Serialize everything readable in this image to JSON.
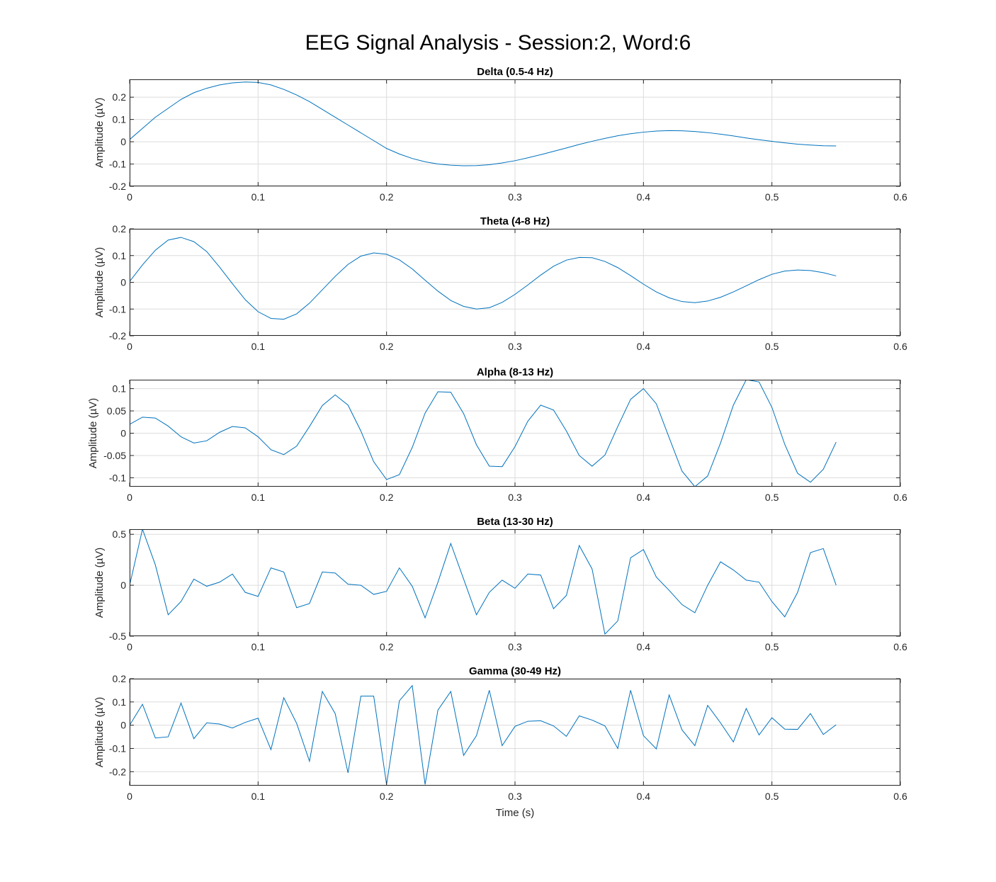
{
  "title": "EEG Signal Analysis - Session:2, Word:6",
  "colors": {
    "line": "#0072bd",
    "grid": "#dcdcdc",
    "axis": "#262626"
  },
  "chart_data": [
    {
      "type": "line",
      "title": "Delta (0.5-4 Hz)",
      "ylabel": "Amplitude (µV)",
      "xlabel": "",
      "xlim": [
        0,
        0.6
      ],
      "ylim": [
        -0.2,
        0.28
      ],
      "xticks": [
        0,
        0.1,
        0.2,
        0.3,
        0.4,
        0.5,
        0.6
      ],
      "xtick_labels": [
        "0",
        "0.1",
        "0.2",
        "0.3",
        "0.4",
        "0.5",
        "0.6"
      ],
      "yticks": [
        -0.2,
        -0.1,
        0,
        0.1,
        0.2
      ],
      "ytick_labels": [
        "-0.2",
        "-0.1",
        "0",
        "0.1",
        "0.2"
      ],
      "grid": true,
      "x": [
        0,
        0.01,
        0.02,
        0.03,
        0.04,
        0.05,
        0.06,
        0.07,
        0.08,
        0.09,
        0.1,
        0.11,
        0.12,
        0.13,
        0.14,
        0.15,
        0.16,
        0.17,
        0.18,
        0.19,
        0.2,
        0.21,
        0.22,
        0.23,
        0.24,
        0.25,
        0.26,
        0.27,
        0.28,
        0.29,
        0.3,
        0.31,
        0.32,
        0.33,
        0.34,
        0.35,
        0.36,
        0.37,
        0.38,
        0.39,
        0.4,
        0.41,
        0.42,
        0.43,
        0.44,
        0.45,
        0.46,
        0.47,
        0.48,
        0.49,
        0.5,
        0.51,
        0.52,
        0.53,
        0.54,
        0.55
      ],
      "y": [
        0.01,
        0.06,
        0.11,
        0.15,
        0.19,
        0.22,
        0.24,
        0.255,
        0.264,
        0.268,
        0.266,
        0.255,
        0.235,
        0.21,
        0.18,
        0.145,
        0.11,
        0.075,
        0.04,
        0.005,
        -0.03,
        -0.055,
        -0.075,
        -0.09,
        -0.1,
        -0.105,
        -0.108,
        -0.107,
        -0.103,
        -0.095,
        -0.085,
        -0.072,
        -0.058,
        -0.043,
        -0.028,
        -0.012,
        0.002,
        0.015,
        0.027,
        0.036,
        0.043,
        0.048,
        0.05,
        0.049,
        0.046,
        0.041,
        0.034,
        0.026,
        0.017,
        0.009,
        0.002,
        -0.005,
        -0.011,
        -0.015,
        -0.018,
        -0.019
      ]
    },
    {
      "type": "line",
      "title": "Theta (4-8 Hz)",
      "ylabel": "Amplitude (µV)",
      "xlabel": "",
      "xlim": [
        0,
        0.6
      ],
      "ylim": [
        -0.2,
        0.2
      ],
      "xticks": [
        0,
        0.1,
        0.2,
        0.3,
        0.4,
        0.5,
        0.6
      ],
      "xtick_labels": [
        "0",
        "0.1",
        "0.2",
        "0.3",
        "0.4",
        "0.5",
        "0.6"
      ],
      "yticks": [
        -0.2,
        -0.1,
        0,
        0.1,
        0.2
      ],
      "ytick_labels": [
        "-0.2",
        "-0.1",
        "0",
        "0.1",
        "0.2"
      ],
      "grid": true,
      "x": [
        0,
        0.01,
        0.02,
        0.03,
        0.04,
        0.05,
        0.06,
        0.07,
        0.08,
        0.09,
        0.1,
        0.11,
        0.12,
        0.13,
        0.14,
        0.15,
        0.16,
        0.17,
        0.18,
        0.19,
        0.2,
        0.21,
        0.22,
        0.23,
        0.24,
        0.25,
        0.26,
        0.27,
        0.28,
        0.29,
        0.3,
        0.31,
        0.32,
        0.33,
        0.34,
        0.35,
        0.36,
        0.37,
        0.38,
        0.39,
        0.4,
        0.41,
        0.42,
        0.43,
        0.44,
        0.45,
        0.46,
        0.47,
        0.48,
        0.49,
        0.5,
        0.51,
        0.52,
        0.53,
        0.54,
        0.55
      ],
      "y": [
        0.003,
        0.065,
        0.12,
        0.158,
        0.168,
        0.152,
        0.115,
        0.057,
        -0.005,
        -0.065,
        -0.11,
        -0.135,
        -0.138,
        -0.118,
        -0.078,
        -0.028,
        0.022,
        0.067,
        0.098,
        0.11,
        0.105,
        0.084,
        0.05,
        0.008,
        -0.033,
        -0.068,
        -0.09,
        -0.1,
        -0.095,
        -0.075,
        -0.045,
        -0.01,
        0.027,
        0.06,
        0.083,
        0.093,
        0.092,
        0.078,
        0.055,
        0.025,
        -0.007,
        -0.036,
        -0.058,
        -0.072,
        -0.076,
        -0.07,
        -0.056,
        -0.036,
        -0.013,
        0.01,
        0.03,
        0.042,
        0.046,
        0.044,
        0.036,
        0.024
      ]
    },
    {
      "type": "line",
      "title": "Alpha (8-13 Hz)",
      "ylabel": "Amplitude (µV)",
      "xlabel": "",
      "xlim": [
        0,
        0.6
      ],
      "ylim": [
        -0.12,
        0.12
      ],
      "xticks": [
        0,
        0.1,
        0.2,
        0.3,
        0.4,
        0.5,
        0.6
      ],
      "xtick_labels": [
        "0",
        "0.1",
        "0.2",
        "0.3",
        "0.4",
        "0.5",
        "0.6"
      ],
      "yticks": [
        -0.1,
        -0.05,
        0,
        0.05,
        0.1
      ],
      "ytick_labels": [
        "-0.1",
        "-0.05",
        "0",
        "0.05",
        "0.1"
      ],
      "grid": true,
      "x": [
        0,
        0.01,
        0.02,
        0.03,
        0.04,
        0.05,
        0.06,
        0.07,
        0.08,
        0.09,
        0.1,
        0.11,
        0.12,
        0.13,
        0.14,
        0.15,
        0.16,
        0.17,
        0.18,
        0.19,
        0.2,
        0.21,
        0.22,
        0.23,
        0.24,
        0.25,
        0.26,
        0.27,
        0.28,
        0.29,
        0.3,
        0.31,
        0.32,
        0.33,
        0.34,
        0.35,
        0.36,
        0.37,
        0.38,
        0.39,
        0.4,
        0.41,
        0.42,
        0.43,
        0.44,
        0.45,
        0.46,
        0.47,
        0.48,
        0.49,
        0.5,
        0.51,
        0.52,
        0.53,
        0.54,
        0.55
      ],
      "y": [
        0.02,
        0.036,
        0.034,
        0.016,
        -0.008,
        -0.022,
        -0.017,
        0.002,
        0.015,
        0.012,
        -0.008,
        -0.037,
        -0.048,
        -0.029,
        0.015,
        0.062,
        0.086,
        0.063,
        0.005,
        -0.064,
        -0.104,
        -0.093,
        -0.032,
        0.045,
        0.093,
        0.092,
        0.044,
        -0.026,
        -0.074,
        -0.075,
        -0.03,
        0.027,
        0.063,
        0.052,
        0.005,
        -0.05,
        -0.074,
        -0.049,
        0.015,
        0.076,
        0.1,
        0.066,
        -0.01,
        -0.085,
        -0.12,
        -0.096,
        -0.022,
        0.063,
        0.12,
        0.115,
        0.058,
        -0.025,
        -0.09,
        -0.11,
        -0.081,
        -0.02
      ]
    },
    {
      "type": "line",
      "title": "Beta (13-30 Hz)",
      "ylabel": "Amplitude (µV)",
      "xlabel": "",
      "xlim": [
        0,
        0.6
      ],
      "ylim": [
        -0.5,
        0.55
      ],
      "xticks": [
        0,
        0.1,
        0.2,
        0.3,
        0.4,
        0.5,
        0.6
      ],
      "xtick_labels": [
        "0",
        "0.1",
        "0.2",
        "0.3",
        "0.4",
        "0.5",
        "0.6"
      ],
      "yticks": [
        -0.5,
        0,
        0.5
      ],
      "ytick_labels": [
        "-0.5",
        "0",
        "0.5"
      ],
      "grid": true,
      "x": [
        0,
        0.01,
        0.02,
        0.03,
        0.04,
        0.05,
        0.06,
        0.07,
        0.08,
        0.09,
        0.1,
        0.11,
        0.12,
        0.13,
        0.14,
        0.15,
        0.16,
        0.17,
        0.18,
        0.19,
        0.2,
        0.21,
        0.22,
        0.23,
        0.24,
        0.25,
        0.26,
        0.27,
        0.28,
        0.29,
        0.3,
        0.31,
        0.32,
        0.33,
        0.34,
        0.35,
        0.36,
        0.37,
        0.38,
        0.39,
        0.4,
        0.41,
        0.42,
        0.43,
        0.44,
        0.45,
        0.46,
        0.47,
        0.48,
        0.49,
        0.5,
        0.51,
        0.52,
        0.53,
        0.54,
        0.55
      ],
      "y": [
        0.0,
        0.55,
        0.2,
        -0.29,
        -0.16,
        0.06,
        -0.01,
        0.03,
        0.11,
        -0.07,
        -0.11,
        0.17,
        0.13,
        -0.22,
        -0.18,
        0.13,
        0.12,
        0.01,
        0.0,
        -0.09,
        -0.06,
        0.17,
        -0.01,
        -0.32,
        0.03,
        0.41,
        0.06,
        -0.29,
        -0.07,
        0.05,
        -0.03,
        0.11,
        0.1,
        -0.23,
        -0.1,
        0.39,
        0.16,
        -0.48,
        -0.35,
        0.27,
        0.35,
        0.08,
        -0.05,
        -0.19,
        -0.27,
        0.0,
        0.23,
        0.15,
        0.05,
        0.03,
        -0.16,
        -0.31,
        -0.07,
        0.32,
        0.36,
        0.0
      ]
    },
    {
      "type": "line",
      "title": "Gamma (30-49 Hz)",
      "ylabel": "Amplitude (µV)",
      "xlabel": "Time (s)",
      "xlim": [
        0,
        0.6
      ],
      "ylim": [
        -0.26,
        0.2
      ],
      "xticks": [
        0,
        0.1,
        0.2,
        0.3,
        0.4,
        0.5,
        0.6
      ],
      "xtick_labels": [
        "0",
        "0.1",
        "0.2",
        "0.3",
        "0.4",
        "0.5",
        "0.6"
      ],
      "yticks": [
        -0.2,
        -0.1,
        0,
        0.1,
        0.2
      ],
      "ytick_labels": [
        "-0.2",
        "-0.1",
        "0",
        "0.1",
        "0.2"
      ],
      "grid": true,
      "x": [
        0,
        0.01,
        0.02,
        0.03,
        0.04,
        0.05,
        0.06,
        0.07,
        0.08,
        0.09,
        0.1,
        0.11,
        0.12,
        0.13,
        0.14,
        0.15,
        0.16,
        0.17,
        0.18,
        0.19,
        0.2,
        0.21,
        0.22,
        0.23,
        0.24,
        0.25,
        0.26,
        0.27,
        0.28,
        0.29,
        0.3,
        0.31,
        0.32,
        0.33,
        0.34,
        0.35,
        0.36,
        0.37,
        0.38,
        0.39,
        0.4,
        0.41,
        0.42,
        0.43,
        0.44,
        0.45,
        0.46,
        0.47,
        0.48,
        0.49,
        0.5,
        0.51,
        0.52,
        0.53,
        0.54,
        0.55
      ],
      "y": [
        0.0,
        0.09,
        -0.055,
        -0.05,
        0.095,
        -0.058,
        0.01,
        0.005,
        -0.012,
        0.012,
        0.03,
        -0.105,
        0.118,
        0.008,
        -0.155,
        0.145,
        0.05,
        -0.205,
        0.125,
        0.125,
        -0.255,
        0.105,
        0.17,
        -0.255,
        0.065,
        0.145,
        -0.13,
        -0.045,
        0.15,
        -0.088,
        -0.005,
        0.017,
        0.019,
        -0.003,
        -0.048,
        0.04,
        0.022,
        -0.003,
        -0.1,
        0.15,
        -0.045,
        -0.102,
        0.13,
        -0.02,
        -0.088,
        0.085,
        0.01,
        -0.072,
        0.072,
        -0.042,
        0.032,
        -0.017,
        -0.018,
        0.05,
        -0.04,
        0.002
      ]
    }
  ]
}
